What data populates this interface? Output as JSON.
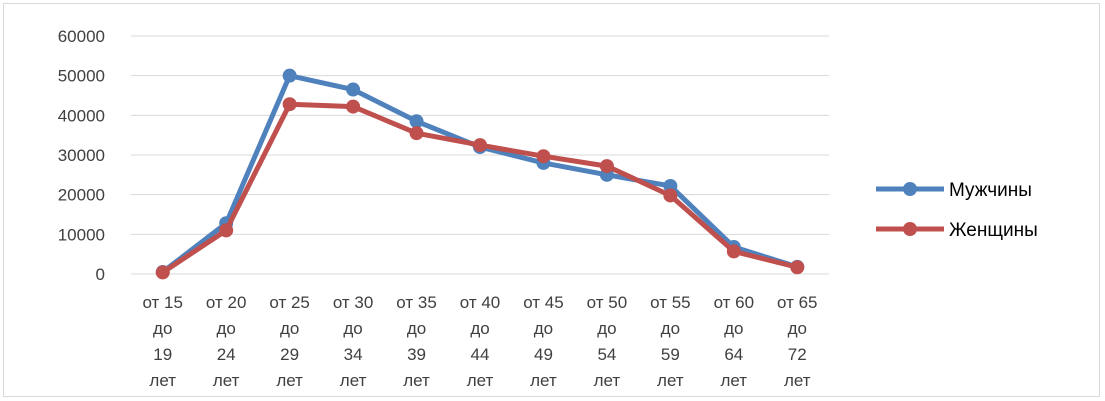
{
  "chart_data": {
    "type": "line",
    "title": "",
    "xlabel": "",
    "ylabel": "",
    "categories": [
      [
        "от 15",
        "до",
        "19",
        "лет"
      ],
      [
        "от 20",
        "до",
        "24",
        "лет"
      ],
      [
        "от 25",
        "до",
        "29",
        "лет"
      ],
      [
        "от 30",
        "до",
        "34",
        "лет"
      ],
      [
        "от 35",
        "до",
        "39",
        "лет"
      ],
      [
        "от 40",
        "до",
        "44",
        "лет"
      ],
      [
        "от 45",
        "до",
        "49",
        "лет"
      ],
      [
        "от 50",
        "до",
        "54",
        "лет"
      ],
      [
        "от 55",
        "до",
        "59",
        "лет"
      ],
      [
        "от 60",
        "до",
        "64",
        "лет"
      ],
      [
        "от 65",
        "до",
        "72",
        "лет"
      ]
    ],
    "y_ticks": [
      "0",
      "10000",
      "20000",
      "30000",
      "40000",
      "50000",
      "60000"
    ],
    "ylim": [
      0,
      60000
    ],
    "grid": true,
    "legend_position": "right",
    "series": [
      {
        "name": "Мужчины",
        "color": "#4f81bd",
        "values": [
          500,
          12800,
          50000,
          46500,
          38500,
          32000,
          28000,
          25000,
          22200,
          6800,
          1800
        ]
      },
      {
        "name": "Женщины",
        "color": "#c0504d",
        "values": [
          400,
          11000,
          42800,
          42200,
          35500,
          32500,
          29700,
          27200,
          19800,
          5700,
          1700
        ]
      }
    ]
  }
}
